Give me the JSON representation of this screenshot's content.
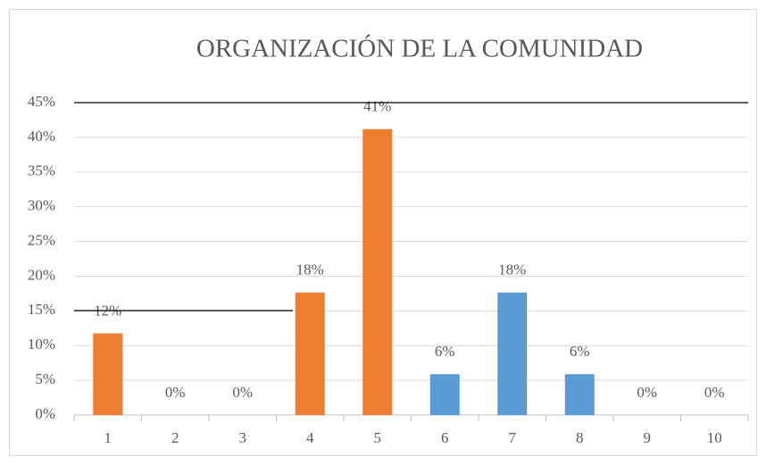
{
  "chart_data": {
    "type": "bar",
    "title": "ORGANIZACIÓN DE LA COMUNIDAD",
    "categories": [
      "1",
      "2",
      "3",
      "4",
      "5",
      "6",
      "7",
      "8",
      "9",
      "10"
    ],
    "values": [
      11.76,
      0,
      0,
      17.65,
      41.18,
      5.88,
      17.65,
      5.88,
      0,
      0
    ],
    "value_labels": [
      "12%",
      "0%",
      "0%",
      "18%",
      "41%",
      "6%",
      "18%",
      "6%",
      "0%",
      "0%"
    ],
    "colors": [
      "#ed7d31",
      "#ed7d31",
      "#ed7d31",
      "#ed7d31",
      "#ed7d31",
      "#5b9bd5",
      "#5b9bd5",
      "#5b9bd5",
      "#5b9bd5",
      "#5b9bd5"
    ],
    "ylim": [
      0,
      45
    ],
    "yticks": [
      {
        "value": 0,
        "label": "0%"
      },
      {
        "value": 5,
        "label": "5%"
      },
      {
        "value": 10,
        "label": "10%"
      },
      {
        "value": 15,
        "label": "15%"
      },
      {
        "value": 20,
        "label": "20%"
      },
      {
        "value": 25,
        "label": "25%"
      },
      {
        "value": 30,
        "label": "30%"
      },
      {
        "value": 35,
        "label": "35%"
      },
      {
        "value": 40,
        "label": "40%"
      },
      {
        "value": 45,
        "label": "45%"
      }
    ],
    "grid": true
  }
}
